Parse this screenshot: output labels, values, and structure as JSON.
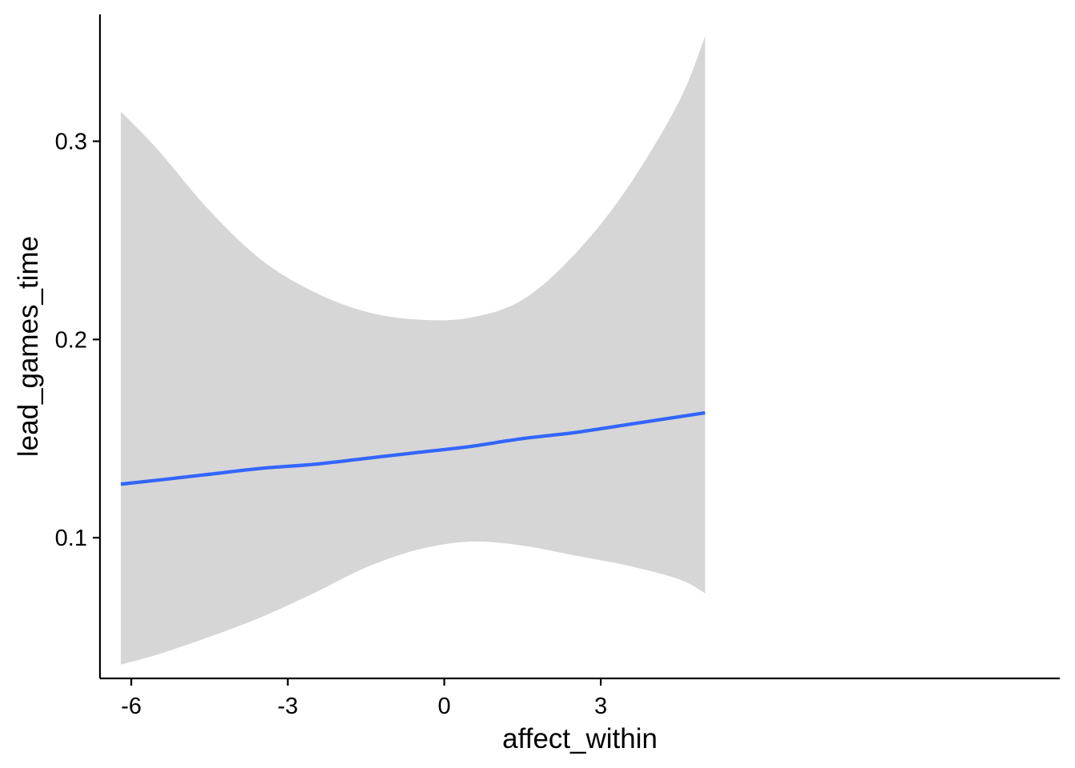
{
  "chart_data": {
    "type": "line",
    "xlabel": "affect_within",
    "ylabel": "lead_games_time",
    "xlim": [
      -6.6,
      11.8
    ],
    "ylim": [
      0.029,
      0.364
    ],
    "x_ticks": [
      {
        "value": -6,
        "label": "-6"
      },
      {
        "value": -3,
        "label": "-3"
      },
      {
        "value": 0,
        "label": "0"
      },
      {
        "value": 3,
        "label": "3"
      }
    ],
    "y_ticks": [
      {
        "value": 0.1,
        "label": "0.1"
      },
      {
        "value": 0.2,
        "label": "0.2"
      },
      {
        "value": 0.3,
        "label": "0.3"
      }
    ],
    "grid": false,
    "legend": "none",
    "series": [
      {
        "kind": "fit",
        "color": "#3366FF",
        "x": [
          -6.2,
          -5.5,
          -4.5,
          -3.5,
          -2.5,
          -1.5,
          -0.5,
          0.5,
          1.5,
          2.5,
          3.5,
          4.5,
          5.0
        ],
        "y": [
          0.127,
          0.129,
          0.132,
          0.135,
          0.137,
          0.14,
          0.143,
          0.146,
          0.15,
          0.153,
          0.157,
          0.161,
          0.163
        ]
      }
    ],
    "confidence_band": {
      "color": "#D6D6D6",
      "x": [
        -6.2,
        -5.5,
        -4.5,
        -3.5,
        -2.5,
        -1.5,
        -0.5,
        0.5,
        1.5,
        2.5,
        3.5,
        4.5,
        5.0
      ],
      "upper": [
        0.315,
        0.296,
        0.265,
        0.24,
        0.224,
        0.214,
        0.21,
        0.211,
        0.22,
        0.243,
        0.276,
        0.32,
        0.353
      ],
      "lower": [
        0.036,
        0.041,
        0.05,
        0.06,
        0.072,
        0.085,
        0.094,
        0.098,
        0.096,
        0.091,
        0.086,
        0.079,
        0.072
      ]
    }
  }
}
